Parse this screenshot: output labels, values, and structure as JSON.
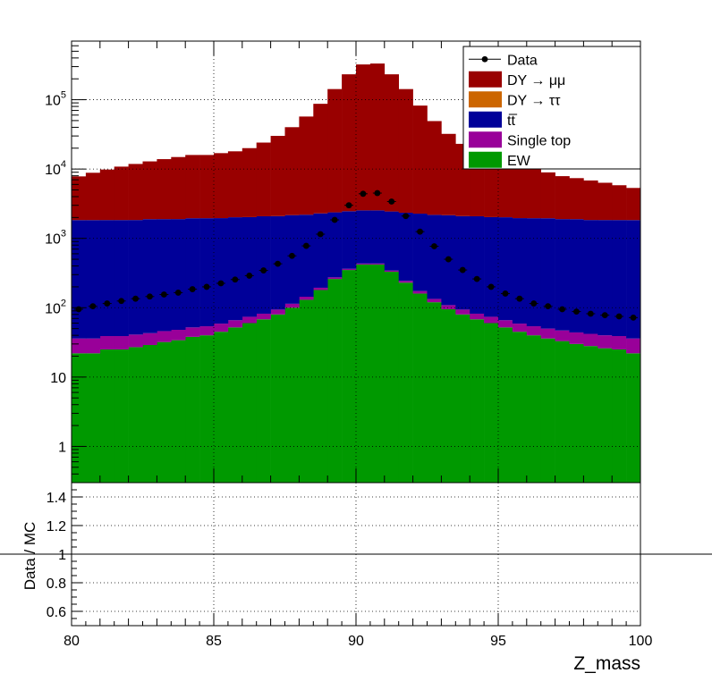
{
  "chart_data": [
    {
      "name": "main",
      "type": "stacked-histogram",
      "xlim": [
        80,
        100
      ],
      "ylim": [
        0.3,
        700000
      ],
      "yscale": "log",
      "grid": true,
      "xlabel": "Z_mass",
      "ylabel": "",
      "bin_edges": [
        80.0,
        80.5,
        81.0,
        81.5,
        82.0,
        82.5,
        83.0,
        83.5,
        84.0,
        84.5,
        85.0,
        85.5,
        86.0,
        86.5,
        87.0,
        87.5,
        88.0,
        88.5,
        89.0,
        89.5,
        90.0,
        90.5,
        91.0,
        91.5,
        92.0,
        92.5,
        93.0,
        93.5,
        94.0,
        94.5,
        95.0,
        95.5,
        96.0,
        96.5,
        97.0,
        97.5,
        98.0,
        98.5,
        99.0,
        99.5,
        100.0
      ],
      "y_ticks": [
        "1",
        "10",
        "10^2",
        "10^3",
        "10^4",
        "10^5"
      ],
      "stack_series": [
        {
          "name": "EW",
          "color": "#009900",
          "values": [
            22,
            22,
            25,
            25,
            27,
            29,
            32,
            34,
            38,
            40,
            45,
            52,
            60,
            68,
            80,
            100,
            130,
            180,
            260,
            350,
            420,
            420,
            330,
            230,
            160,
            120,
            95,
            80,
            68,
            60,
            52,
            45,
            40,
            36,
            33,
            30,
            28,
            26,
            25,
            22
          ]
        },
        {
          "name": "Single top",
          "color": "#990099",
          "values": [
            14,
            14,
            14,
            14,
            14,
            14,
            14,
            14,
            14,
            14,
            14,
            14,
            14,
            14,
            14,
            14,
            14,
            14,
            14,
            14,
            14,
            14,
            14,
            14,
            14,
            14,
            14,
            14,
            14,
            14,
            14,
            14,
            14,
            14,
            14,
            14,
            14,
            14,
            14,
            14
          ]
        },
        {
          "name": "tt̅",
          "color": "#000099",
          "values": [
            1800,
            1800,
            1800,
            1800,
            1800,
            1850,
            1850,
            1850,
            1900,
            1900,
            1900,
            1950,
            1950,
            2000,
            2000,
            2050,
            2050,
            2100,
            2100,
            2100,
            2100,
            2100,
            2100,
            2100,
            2100,
            2050,
            2050,
            2000,
            2000,
            1950,
            1950,
            1900,
            1900,
            1900,
            1850,
            1850,
            1800,
            1800,
            1800,
            1800
          ]
        },
        {
          "name": "DY → ττ",
          "color": "#cc6600",
          "values": [
            2,
            2,
            2,
            2,
            2,
            2,
            2,
            2,
            2,
            2,
            2,
            2,
            2,
            2,
            2,
            2,
            2,
            2,
            2,
            2,
            2,
            2,
            2,
            2,
            2,
            2,
            2,
            2,
            2,
            2,
            2,
            2,
            2,
            2,
            2,
            2,
            2,
            2,
            2,
            2
          ]
        },
        {
          "name": "DY → μμ",
          "color": "#990000",
          "values": [
            6000,
            7000,
            8000,
            9000,
            10000,
            11000,
            12000,
            13000,
            14000,
            14000,
            15000,
            16000,
            18000,
            22000,
            28000,
            38000,
            55000,
            85000,
            140000,
            230000,
            320000,
            330000,
            230000,
            140000,
            80000,
            47000,
            30000,
            21000,
            16000,
            12500,
            10500,
            9000,
            8000,
            7000,
            6000,
            5500,
            5000,
            4500,
            4000,
            3500
          ]
        }
      ],
      "data_series": {
        "name": "Data",
        "color": "#000000",
        "x": [
          80.25,
          80.75,
          81.25,
          81.75,
          82.25,
          82.75,
          83.25,
          83.75,
          84.25,
          84.75,
          85.25,
          85.75,
          86.25,
          86.75,
          87.25,
          87.75,
          88.25,
          88.75,
          89.25,
          89.75,
          90.25,
          90.75,
          91.25,
          91.75,
          92.25,
          92.75,
          93.25,
          93.75,
          94.25,
          94.75,
          95.25,
          95.75,
          96.25,
          96.75,
          97.25,
          97.75,
          98.25,
          98.75,
          99.25,
          99.75
        ],
        "values": [
          95,
          105,
          115,
          125,
          135,
          145,
          155,
          165,
          185,
          200,
          225,
          255,
          290,
          345,
          430,
          560,
          780,
          1150,
          1850,
          3000,
          4400,
          4500,
          3400,
          2100,
          1250,
          770,
          500,
          350,
          260,
          200,
          160,
          135,
          115,
          105,
          95,
          88,
          82,
          78,
          75,
          72
        ]
      }
    },
    {
      "name": "ratio",
      "type": "ratio",
      "xlim": [
        80,
        100
      ],
      "ylim": [
        0.5,
        1.5
      ],
      "grid": true,
      "xlabel": "Z_mass",
      "ylabel": "Data / MC",
      "x_ticks": [
        "80",
        "85",
        "90",
        "95",
        "100"
      ],
      "y_ticks": [
        "0.6",
        "0.8",
        "1",
        "1.2",
        "1.4"
      ],
      "reference_line": 1
    }
  ],
  "legend": {
    "position": "top-right",
    "entries": [
      {
        "label": "Data",
        "kind": "marker",
        "color": "#000000"
      },
      {
        "label": "DY → μμ",
        "kind": "fill",
        "color": "#990000"
      },
      {
        "label": "DY → ττ",
        "kind": "fill",
        "color": "#cc6600"
      },
      {
        "label": "tt̅",
        "kind": "fill",
        "color": "#000099"
      },
      {
        "label": "Single top",
        "kind": "fill",
        "color": "#990099"
      },
      {
        "label": "EW",
        "kind": "fill",
        "color": "#009900"
      }
    ]
  }
}
